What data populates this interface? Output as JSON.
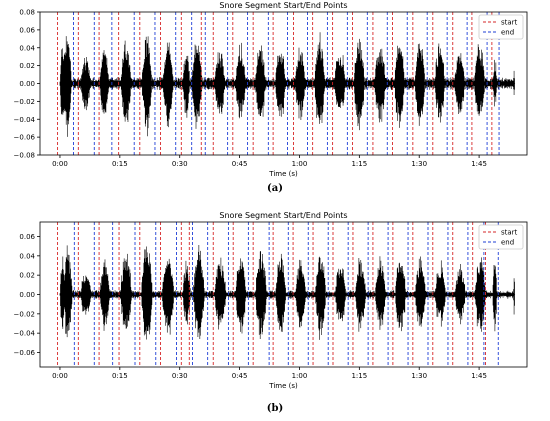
{
  "chart_data": [
    {
      "type": "line",
      "panel_label": "(a)",
      "title": "Snore Segment Start/End Points",
      "xlabel": "Time (s)",
      "ylabel": "",
      "xlim": [
        -5,
        117
      ],
      "ylim": [
        -0.08,
        0.08
      ],
      "x_ticks": [
        0,
        15,
        30,
        45,
        60,
        75,
        90,
        105
      ],
      "x_tick_labels": [
        "0:00",
        "0:15",
        "0:30",
        "0:45",
        "1:00",
        "1:15",
        "1:30",
        "1:45"
      ],
      "y_ticks": [
        -0.08,
        -0.06,
        -0.04,
        -0.02,
        0.0,
        0.02,
        0.04,
        0.06,
        0.08
      ],
      "y_tick_labels": [
        "−0.08",
        "−0.06",
        "−0.04",
        "−0.02",
        "0.00",
        "0.02",
        "0.04",
        "0.06",
        "0.08"
      ],
      "grid": false,
      "legend_position": "top-right",
      "signal": {
        "color": "#000000",
        "duration": 114,
        "baseline_amplitude": 0.005,
        "bursts": [
          {
            "start": 0,
            "end": 1.5,
            "amplitude": 0.055
          },
          {
            "start": 0.9,
            "end": 3.2,
            "amplitude": 0.065
          },
          {
            "start": 5.2,
            "end": 8.0,
            "amplitude": 0.035
          },
          {
            "start": 10.0,
            "end": 12.6,
            "amplitude": 0.045
          },
          {
            "start": 15.3,
            "end": 18.2,
            "amplitude": 0.055
          },
          {
            "start": 20.5,
            "end": 23.4,
            "amplitude": 0.065
          },
          {
            "start": 25.8,
            "end": 28.8,
            "amplitude": 0.055
          },
          {
            "start": 30.8,
            "end": 32.8,
            "amplitude": 0.045
          },
          {
            "start": 33.0,
            "end": 36.0,
            "amplitude": 0.06
          },
          {
            "start": 38.8,
            "end": 41.7,
            "amplitude": 0.045
          },
          {
            "start": 44.0,
            "end": 46.8,
            "amplitude": 0.05
          },
          {
            "start": 49.0,
            "end": 51.8,
            "amplitude": 0.055
          },
          {
            "start": 54.0,
            "end": 56.8,
            "amplitude": 0.05
          },
          {
            "start": 58.9,
            "end": 61.8,
            "amplitude": 0.045
          },
          {
            "start": 63.8,
            "end": 66.7,
            "amplitude": 0.06
          },
          {
            "start": 68.8,
            "end": 71.9,
            "amplitude": 0.045
          },
          {
            "start": 73.7,
            "end": 76.7,
            "amplitude": 0.06
          },
          {
            "start": 78.8,
            "end": 82.0,
            "amplitude": 0.05
          },
          {
            "start": 83.8,
            "end": 86.7,
            "amplitude": 0.055
          },
          {
            "start": 88.9,
            "end": 91.8,
            "amplitude": 0.06
          },
          {
            "start": 93.9,
            "end": 96.8,
            "amplitude": 0.05
          },
          {
            "start": 98.9,
            "end": 101.8,
            "amplitude": 0.045
          },
          {
            "start": 103.8,
            "end": 106.8,
            "amplitude": 0.05
          },
          {
            "start": 108.5,
            "end": 109.6,
            "amplitude": 0.03
          },
          {
            "start": 113.6,
            "end": 114.0,
            "amplitude": 0.02
          }
        ]
      },
      "series": [
        {
          "name": "start",
          "color": "#d62728",
          "style": "dashed",
          "x": [
            -0.6,
            4.6,
            9.8,
            14.7,
            20.0,
            25.2,
            30.4,
            35.4,
            38.4,
            43.3,
            48.4,
            53.4,
            58.5,
            63.3,
            68.3,
            73.3,
            78.4,
            83.3,
            88.4,
            93.4,
            98.4,
            103.2,
            108.2
          ]
        },
        {
          "name": "end",
          "color": "#1f3fd6",
          "style": "dashed",
          "x": [
            3.4,
            8.6,
            13.0,
            18.6,
            23.8,
            29.0,
            33.0,
            36.4,
            42.0,
            47.0,
            52.2,
            57.0,
            62.0,
            67.0,
            72.0,
            77.0,
            82.0,
            87.0,
            92.0,
            97.0,
            102.0,
            107.0,
            110.0
          ]
        }
      ]
    },
    {
      "type": "line",
      "panel_label": "(b)",
      "title": "Snore Segment Start/End Points",
      "xlabel": "Time (s)",
      "ylabel": "",
      "xlim": [
        -5,
        117
      ],
      "ylim": [
        -0.075,
        0.075
      ],
      "x_ticks": [
        0,
        15,
        30,
        45,
        60,
        75,
        90,
        105
      ],
      "x_tick_labels": [
        "0:00",
        "0:15",
        "0:30",
        "0:45",
        "1:00",
        "1:15",
        "1:30",
        "1:45"
      ],
      "y_ticks": [
        -0.06,
        -0.04,
        -0.02,
        0.0,
        0.02,
        0.04,
        0.06
      ],
      "y_tick_labels": [
        "−0.06",
        "−0.04",
        "−0.02",
        "0.00",
        "0.02",
        "0.04",
        "0.06"
      ],
      "grid": false,
      "legend_position": "top-right",
      "signal": {
        "color": "#000000",
        "duration": 114,
        "baseline_amplitude": 0.003,
        "bursts": [
          {
            "start": 0,
            "end": 1.5,
            "amplitude": 0.05
          },
          {
            "start": 0.9,
            "end": 3.4,
            "amplitude": 0.055
          },
          {
            "start": 5.2,
            "end": 8.2,
            "amplitude": 0.03
          },
          {
            "start": 10.0,
            "end": 12.8,
            "amplitude": 0.04
          },
          {
            "start": 15.2,
            "end": 18.4,
            "amplitude": 0.05
          },
          {
            "start": 20.4,
            "end": 23.6,
            "amplitude": 0.06
          },
          {
            "start": 25.6,
            "end": 29.0,
            "amplitude": 0.05
          },
          {
            "start": 30.8,
            "end": 33.0,
            "amplitude": 0.04
          },
          {
            "start": 33.4,
            "end": 36.6,
            "amplitude": 0.055
          },
          {
            "start": 38.8,
            "end": 42.0,
            "amplitude": 0.045
          },
          {
            "start": 44.0,
            "end": 47.0,
            "amplitude": 0.045
          },
          {
            "start": 49.0,
            "end": 52.2,
            "amplitude": 0.05
          },
          {
            "start": 54.0,
            "end": 57.0,
            "amplitude": 0.045
          },
          {
            "start": 59.0,
            "end": 62.0,
            "amplitude": 0.04
          },
          {
            "start": 64.0,
            "end": 67.0,
            "amplitude": 0.05
          },
          {
            "start": 69.0,
            "end": 72.0,
            "amplitude": 0.04
          },
          {
            "start": 74.0,
            "end": 77.0,
            "amplitude": 0.045
          },
          {
            "start": 79.0,
            "end": 82.0,
            "amplitude": 0.045
          },
          {
            "start": 84.0,
            "end": 87.0,
            "amplitude": 0.05
          },
          {
            "start": 89.0,
            "end": 92.0,
            "amplitude": 0.045
          },
          {
            "start": 94.0,
            "end": 97.0,
            "amplitude": 0.04
          },
          {
            "start": 99.0,
            "end": 102.0,
            "amplitude": 0.035
          },
          {
            "start": 104.0,
            "end": 107.0,
            "amplitude": 0.05
          },
          {
            "start": 108.4,
            "end": 109.6,
            "amplitude": 0.045
          },
          {
            "start": 113.6,
            "end": 114.0,
            "amplitude": 0.025
          }
        ]
      },
      "series": [
        {
          "name": "start",
          "color": "#d62728",
          "style": "dashed",
          "x": [
            -0.6,
            4.6,
            9.8,
            14.8,
            20.0,
            25.2,
            30.4,
            32.4,
            38.4,
            43.4,
            48.4,
            53.4,
            58.4,
            63.4,
            68.4,
            73.4,
            78.4,
            83.4,
            88.4,
            93.4,
            98.4,
            103.4,
            106.6
          ]
        },
        {
          "name": "end",
          "color": "#1f3fd6",
          "style": "dashed",
          "x": [
            3.6,
            8.6,
            13.2,
            18.8,
            24.0,
            29.2,
            33.2,
            37.0,
            42.2,
            47.2,
            52.4,
            57.2,
            62.2,
            67.2,
            72.2,
            77.2,
            82.2,
            87.2,
            92.2,
            97.2,
            102.2,
            106.2,
            109.8
          ]
        }
      ]
    }
  ]
}
